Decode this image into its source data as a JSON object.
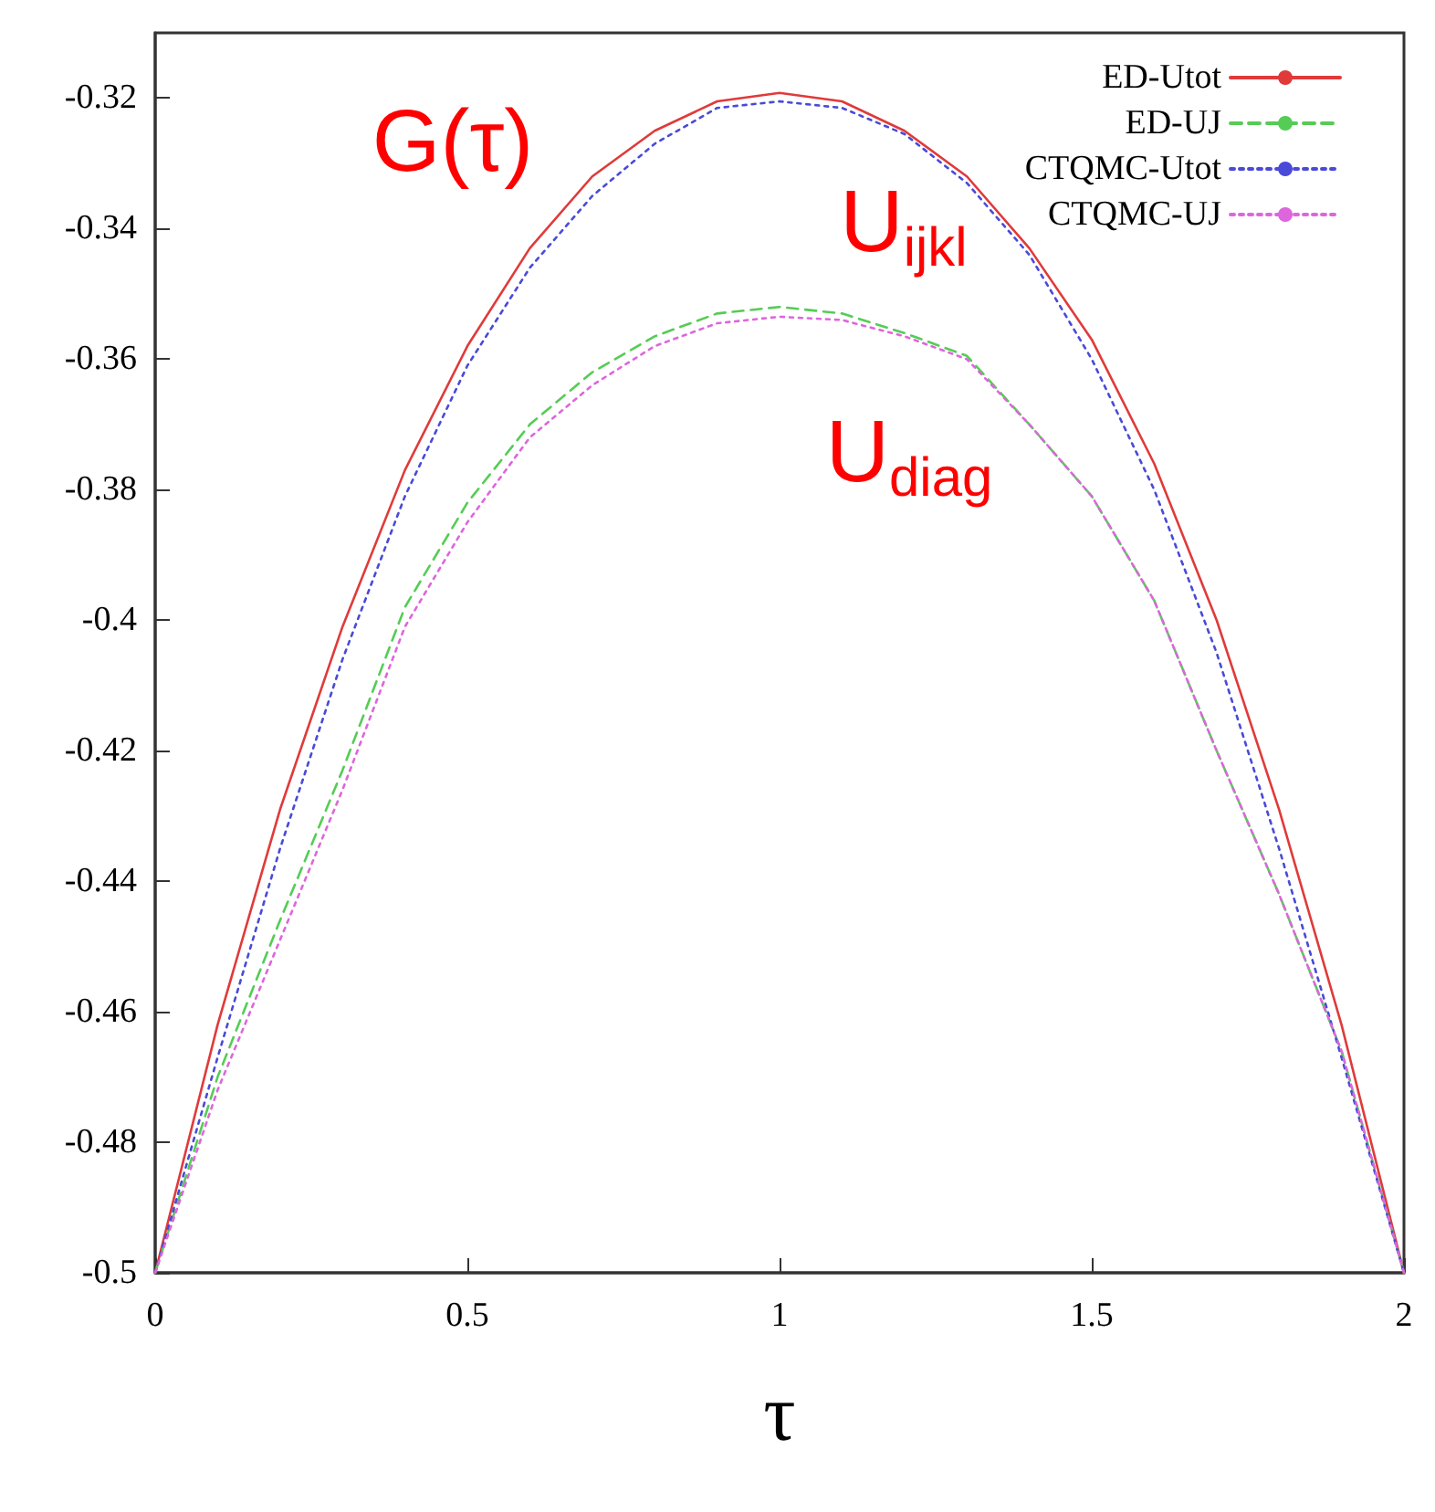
{
  "chart_data": {
    "type": "line",
    "xlabel": "τ",
    "annotations": [
      "G(τ)",
      "U$_{ijkl}$",
      "U$_{diag}$"
    ],
    "x": [
      0,
      0.1,
      0.2,
      0.3,
      0.4,
      0.5,
      0.6,
      0.7,
      0.8,
      0.9,
      1.0,
      1.1,
      1.2,
      1.3,
      1.4,
      1.5,
      1.6,
      1.7,
      1.8,
      1.9,
      2.0
    ],
    "series": [
      {
        "name": "ED-Utot",
        "color": "#e03a3a",
        "line_style": "solid",
        "values": [
          -0.5,
          -0.462,
          -0.429,
          -0.401,
          -0.377,
          -0.358,
          -0.343,
          -0.332,
          -0.325,
          -0.3205,
          -0.3192,
          -0.3205,
          -0.325,
          -0.332,
          -0.343,
          -0.357,
          -0.376,
          -0.4,
          -0.429,
          -0.462,
          -0.5
        ]
      },
      {
        "name": "ED-UJ",
        "color": "#55cc55",
        "line_style": "dashed",
        "values": [
          -0.5,
          -0.47,
          -0.446,
          -0.423,
          -0.398,
          -0.382,
          -0.37,
          -0.362,
          -0.3565,
          -0.353,
          -0.352,
          -0.353,
          -0.356,
          -0.3595,
          -0.37,
          -0.381,
          -0.397,
          -0.42,
          -0.442,
          -0.466,
          -0.5
        ]
      },
      {
        "name": "CTQMC-Utot",
        "color": "#4a4ad8",
        "line_style": "dotted",
        "values": [
          -0.5,
          -0.467,
          -0.435,
          -0.406,
          -0.381,
          -0.361,
          -0.346,
          -0.335,
          -0.327,
          -0.3215,
          -0.3205,
          -0.3215,
          -0.3255,
          -0.333,
          -0.344,
          -0.36,
          -0.38,
          -0.405,
          -0.435,
          -0.467,
          -0.5
        ]
      },
      {
        "name": "CTQMC-UJ",
        "color": "#dd66dd",
        "line_style": "dotted",
        "values": [
          -0.5,
          -0.472,
          -0.449,
          -0.426,
          -0.401,
          -0.385,
          -0.372,
          -0.364,
          -0.358,
          -0.3545,
          -0.3535,
          -0.354,
          -0.3565,
          -0.36,
          -0.37,
          -0.381,
          -0.397,
          -0.42,
          -0.442,
          -0.466,
          -0.5
        ]
      }
    ],
    "xlim": [
      0,
      2
    ],
    "xticks": [
      0,
      0.5,
      1,
      1.5,
      2
    ],
    "ylim": [
      -0.5,
      -0.31
    ],
    "yticks": [
      -0.5,
      -0.48,
      -0.46,
      -0.44,
      -0.42,
      -0.4,
      -0.38,
      -0.36,
      -0.34,
      -0.32
    ],
    "grid": false,
    "legend": "top right",
    "marker": "none"
  }
}
